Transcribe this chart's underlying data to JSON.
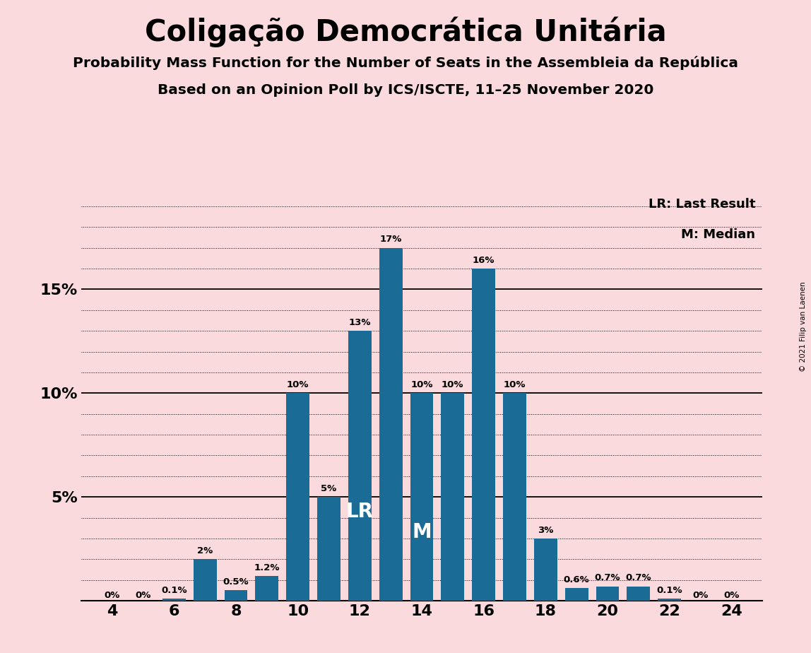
{
  "title": "Coligação Democrática Unitária",
  "subtitle1": "Probability Mass Function for the Number of Seats in the Assembleia da República",
  "subtitle2": "Based on an Opinion Poll by ICS/ISCTE, 11–25 November 2020",
  "copyright": "© 2021 Filip van Laenen",
  "seats": [
    4,
    5,
    6,
    7,
    8,
    9,
    10,
    11,
    12,
    13,
    14,
    15,
    16,
    17,
    18,
    19,
    20,
    21,
    22,
    23,
    24
  ],
  "probabilities": [
    0.0,
    0.0,
    0.1,
    2.0,
    0.5,
    1.2,
    10.0,
    5.0,
    13.0,
    17.0,
    10.0,
    10.0,
    16.0,
    10.0,
    3.0,
    0.6,
    0.7,
    0.7,
    0.1,
    0.0,
    0.0
  ],
  "bar_color": "#1a6b96",
  "background_color": "#fadadd",
  "lr_seat": 12,
  "median_seat": 14,
  "bar_labels": [
    "0%",
    "0%",
    "0.1%",
    "2%",
    "0.5%",
    "1.2%",
    "10%",
    "5%",
    "13%",
    "17%",
    "10%",
    "10%",
    "16%",
    "10%",
    "3%",
    "0.6%",
    "0.7%",
    "0.7%",
    "0.1%",
    "0%",
    "0%"
  ],
  "xtick_positions": [
    4,
    6,
    8,
    10,
    12,
    14,
    16,
    18,
    20,
    22,
    24
  ],
  "legend_lr": "LR: Last Result",
  "legend_m": "M: Median"
}
